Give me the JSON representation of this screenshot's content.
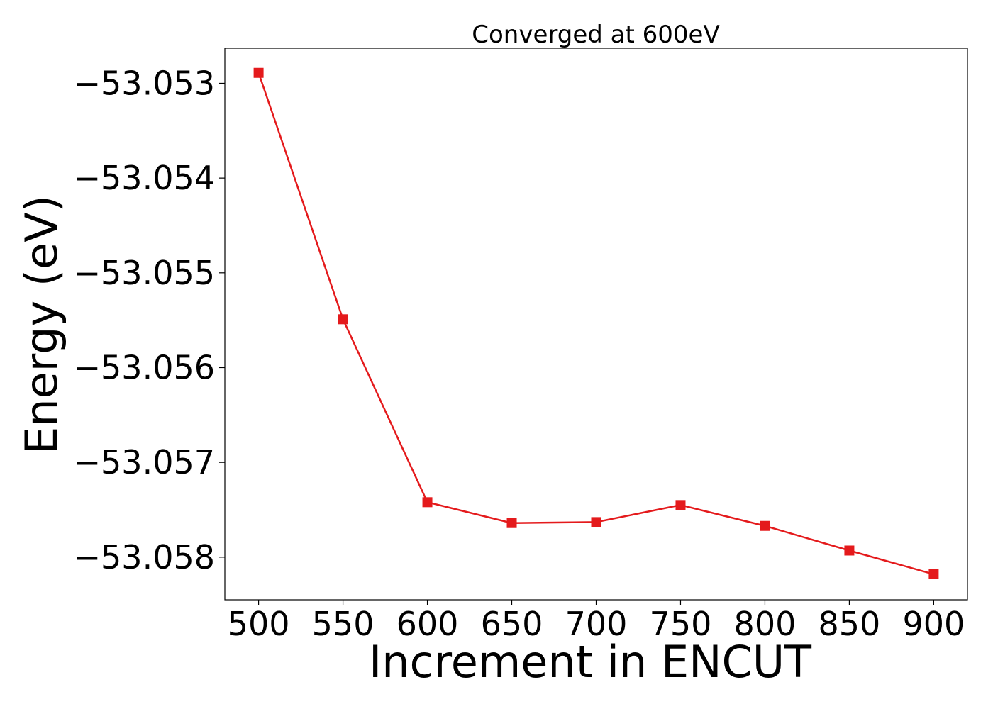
{
  "chart_data": {
    "type": "line",
    "title": "Converged at 600eV",
    "xlabel": "Increment in ENCUT",
    "ylabel": "Energy (eV)",
    "x": [
      500,
      550,
      600,
      650,
      700,
      750,
      800,
      850,
      900
    ],
    "series": [
      {
        "values": [
          -53.05289,
          -53.05549,
          -53.05742,
          -53.05764,
          -53.05763,
          -53.05745,
          -53.05767,
          -53.05793,
          -53.05818
        ],
        "color": "#e41a1c",
        "marker": "square"
      }
    ],
    "xticks": [
      500,
      550,
      600,
      650,
      700,
      750,
      800,
      850,
      900
    ],
    "xtick_labels": [
      "500",
      "550",
      "600",
      "650",
      "700",
      "750",
      "800",
      "850",
      "900"
    ],
    "yticks": [
      -53.053,
      -53.054,
      -53.055,
      -53.056,
      -53.057,
      -53.058
    ],
    "ytick_labels": [
      "−53.053",
      "−53.054",
      "−53.055",
      "−53.056",
      "−53.057",
      "−53.058"
    ],
    "xlim": [
      480,
      920
    ],
    "ylim": [
      -53.05845,
      -53.05263
    ],
    "grid": false,
    "legend": "none"
  }
}
